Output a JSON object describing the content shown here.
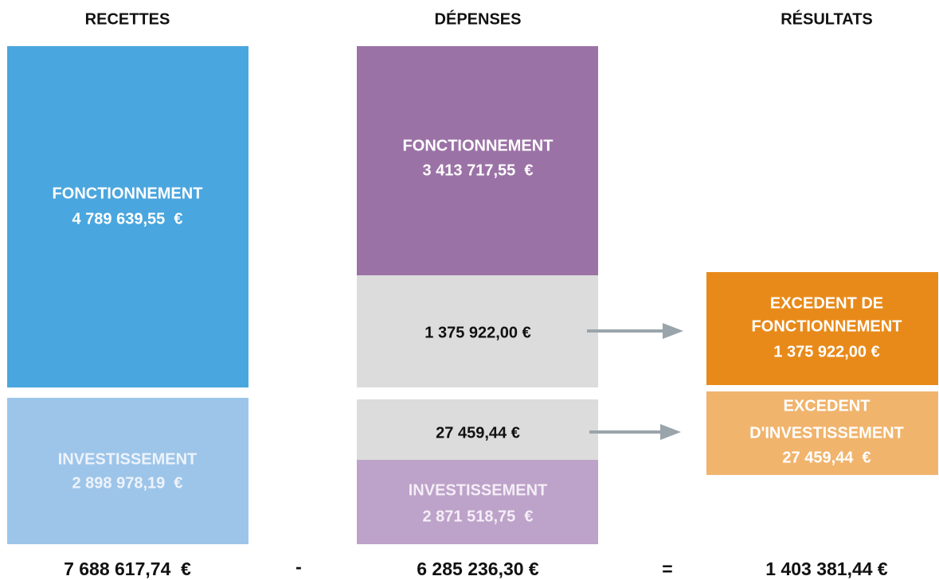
{
  "recettes": {
    "header": "RECETTES",
    "fonctionnement": {
      "label": "FONCTIONNEMENT",
      "amount": "4 789 639,55  €"
    },
    "investissement": {
      "label": "INVESTISSEMENT",
      "amount": "2 898 978,19  €"
    },
    "total": "7 688 617,74  €"
  },
  "operators": [
    "-",
    "="
  ],
  "depenses": {
    "header": "DÉPENSES",
    "fonctionnement": {
      "label": "FONCTIONNEMENT",
      "amount": "3 413 717,55  €"
    },
    "excedent_fonctionnement": "1 375 922,00 €",
    "excedent_investissement": "27 459,44 €",
    "investissement": {
      "label": "INVESTISSEMENT",
      "amount": "2 871 518,75  €"
    },
    "total": "6 285 236,30 €"
  },
  "resultats": {
    "header": "RÉSULTATS",
    "fonctionnement": {
      "lines": [
        "EXCEDENT DE",
        "FONCTIONNEMENT"
      ],
      "amount": "1 375 922,00 €"
    },
    "investissement": {
      "lines": [
        "EXCEDENT",
        "D'INVESTISSEMENT"
      ],
      "amount": "27 459,44  €"
    },
    "total": "1 403 381,44 €"
  }
}
